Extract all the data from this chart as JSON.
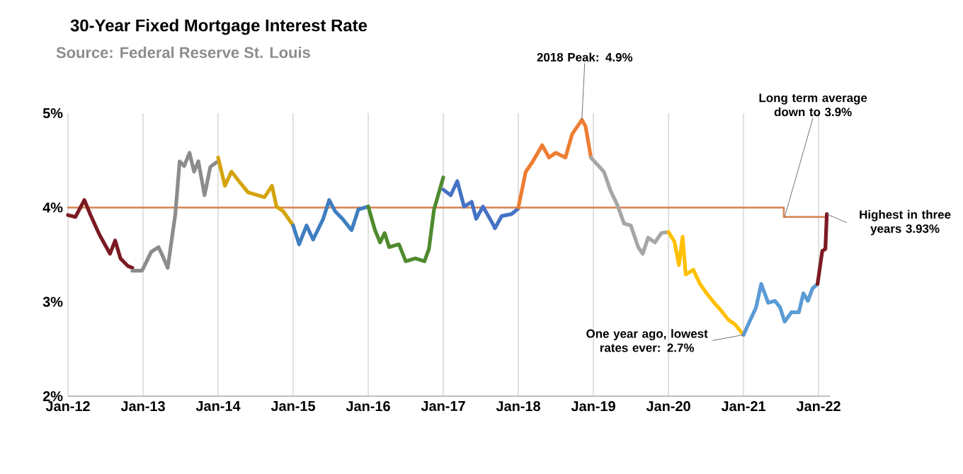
{
  "chart_data": {
    "type": "line",
    "title": "30-Year Fixed Mortgage Interest Rate",
    "subtitle": "Source: Federal Reserve St. Louis",
    "xlim": [
      "2012-01-01",
      "2022-02-25"
    ],
    "xticks": [
      {
        "value": "2012-01-01",
        "label": "Jan-12"
      },
      {
        "value": "2013-01-01",
        "label": "Jan-13"
      },
      {
        "value": "2014-01-01",
        "label": "Jan-14"
      },
      {
        "value": "2015-01-01",
        "label": "Jan-15"
      },
      {
        "value": "2016-01-01",
        "label": "Jan-16"
      },
      {
        "value": "2017-01-01",
        "label": "Jan-17"
      },
      {
        "value": "2018-01-01",
        "label": "Jan-18"
      },
      {
        "value": "2019-01-01",
        "label": "Jan-19"
      },
      {
        "value": "2020-01-01",
        "label": "Jan-20"
      },
      {
        "value": "2021-01-01",
        "label": "Jan-21"
      },
      {
        "value": "2022-01-01",
        "label": "Jan-22"
      }
    ],
    "ylim": [
      2,
      5
    ],
    "yticks": [
      {
        "value": 2,
        "label": "2%"
      },
      {
        "value": 3,
        "label": "3%"
      },
      {
        "value": 4,
        "label": "4%"
      },
      {
        "value": 5,
        "label": "5%"
      }
    ],
    "grid": "x",
    "series": [
      {
        "type": "step",
        "color": "#d98a5c",
        "x": [
          "2012-01-01",
          "2021-07-16",
          "2022-02-14"
        ],
        "values": [
          4.0,
          3.9,
          3.9
        ]
      },
      {
        "color": "#7b1a22",
        "x": [
          "2012-01-01",
          "2012-02-06",
          "2012-03-21",
          "2012-04-20",
          "2012-06-03",
          "2012-07-24",
          "2012-08-18",
          "2012-09-13",
          "2012-10-19",
          "2012-11-10"
        ],
        "values": [
          3.92,
          3.9,
          4.08,
          3.92,
          3.71,
          3.51,
          3.65,
          3.46,
          3.38,
          3.36
        ]
      },
      {
        "color": "#8c8c8c",
        "x": [
          "2012-11-10",
          "2012-12-27",
          "2013-02-10",
          "2013-03-17",
          "2013-04-08",
          "2013-05-01",
          "2013-06-07",
          "2013-06-28",
          "2013-07-20",
          "2013-08-15",
          "2013-09-06",
          "2013-09-27",
          "2013-10-27",
          "2013-11-24",
          "2013-12-24"
        ],
        "values": [
          3.33,
          3.33,
          3.53,
          3.58,
          3.48,
          3.36,
          3.93,
          4.49,
          4.44,
          4.58,
          4.38,
          4.49,
          4.13,
          4.43,
          4.48
        ]
      },
      {
        "color": "#d4a40c",
        "x": [
          "2014-01-01",
          "2014-02-03",
          "2014-03-07",
          "2014-04-12",
          "2014-05-27",
          "2014-08-15",
          "2014-09-20",
          "2014-10-12",
          "2014-11-14",
          "2015-01-01"
        ],
        "values": [
          4.53,
          4.23,
          4.38,
          4.28,
          4.16,
          4.11,
          4.23,
          4.01,
          3.96,
          3.81
        ]
      },
      {
        "color": "#3f7fc0",
        "x": [
          "2015-01-01",
          "2015-01-30",
          "2015-03-07",
          "2015-04-08",
          "2015-05-27",
          "2015-06-25",
          "2015-07-24",
          "2015-08-29",
          "2015-10-12",
          "2015-11-14",
          "2016-01-01"
        ],
        "values": [
          3.81,
          3.61,
          3.81,
          3.66,
          3.88,
          4.08,
          3.96,
          3.88,
          3.76,
          3.98,
          4.01
        ]
      },
      {
        "color": "#4f8a2e",
        "x": [
          "2016-01-01",
          "2016-02-03",
          "2016-02-28",
          "2016-03-21",
          "2016-04-12",
          "2016-05-30",
          "2016-07-02",
          "2016-08-18",
          "2016-10-01",
          "2016-10-23",
          "2016-11-17",
          "2017-01-01"
        ],
        "values": [
          4.01,
          3.76,
          3.63,
          3.73,
          3.58,
          3.61,
          3.43,
          3.46,
          3.43,
          3.56,
          3.98,
          4.32
        ]
      },
      {
        "color": "#4472c4",
        "x": [
          "2017-01-01",
          "2017-02-06",
          "2017-03-10",
          "2017-04-12",
          "2017-05-19",
          "2017-06-10",
          "2017-07-13",
          "2017-08-29",
          "2017-09-09",
          "2017-10-12",
          "2017-11-28",
          "2018-01-01"
        ],
        "values": [
          4.19,
          4.13,
          4.28,
          4.01,
          4.06,
          3.88,
          4.01,
          3.83,
          3.78,
          3.91,
          3.93,
          3.99
        ]
      },
      {
        "color": "#ed7d31",
        "x": [
          "2018-01-01",
          "2018-02-06",
          "2018-03-10",
          "2018-04-27",
          "2018-05-30",
          "2018-07-02",
          "2018-08-18",
          "2018-09-20",
          "2018-11-06",
          "2018-11-24",
          "2018-12-20"
        ],
        "values": [
          4.0,
          4.38,
          4.48,
          4.66,
          4.53,
          4.58,
          4.53,
          4.78,
          4.93,
          4.86,
          4.53
        ]
      },
      {
        "color": "#a6a6a6",
        "x": [
          "2018-12-20",
          "2019-02-21",
          "2019-03-25",
          "2019-04-27",
          "2019-05-30",
          "2019-07-02",
          "2019-08-07",
          "2019-08-29",
          "2019-09-24",
          "2019-10-27",
          "2019-11-28",
          "2020-01-01"
        ],
        "values": [
          4.53,
          4.38,
          4.18,
          4.03,
          3.83,
          3.81,
          3.58,
          3.51,
          3.68,
          3.63,
          3.73,
          3.74
        ]
      },
      {
        "color": "#ffc000",
        "x": [
          "2020-01-01",
          "2020-01-30",
          "2020-02-21",
          "2020-03-10",
          "2020-03-25",
          "2020-05-01",
          "2020-06-03",
          "2020-07-05",
          "2020-08-11",
          "2020-09-13",
          "2020-10-19",
          "2020-11-21",
          "2021-01-01"
        ],
        "values": [
          3.74,
          3.64,
          3.39,
          3.69,
          3.29,
          3.34,
          3.19,
          3.09,
          2.99,
          2.91,
          2.81,
          2.76,
          2.65
        ]
      },
      {
        "color": "#5b9bd5",
        "x": [
          "2021-01-01",
          "2021-01-30",
          "2021-03-03",
          "2021-03-28",
          "2021-05-01",
          "2021-06-03",
          "2021-06-28",
          "2021-07-20",
          "2021-08-22",
          "2021-09-27",
          "2021-10-19",
          "2021-11-10",
          "2021-12-02",
          "2021-12-27"
        ],
        "values": [
          2.65,
          2.79,
          2.94,
          3.19,
          2.99,
          3.01,
          2.94,
          2.79,
          2.89,
          2.89,
          3.09,
          3.01,
          3.14,
          3.19
        ]
      },
      {
        "color": "#7b1a22",
        "x": [
          "2021-12-27",
          "2022-01-19",
          "2022-02-03",
          "2022-02-10"
        ],
        "values": [
          3.19,
          3.54,
          3.56,
          3.93
        ]
      }
    ],
    "annotations": [
      {
        "text": "2018 Peak: 4.9%",
        "x": "2018-11-06",
        "y": 4.93
      },
      {
        "text": "One year ago, lowest rates ever: 2.7%",
        "x": "2021-01-01",
        "y": 2.65
      },
      {
        "text": "Long term average down to 3.9%",
        "x": "2021-07-20",
        "y": 3.9
      },
      {
        "text": "Highest in three years 3.93%",
        "x": "2022-02-10",
        "y": 3.93
      }
    ]
  }
}
